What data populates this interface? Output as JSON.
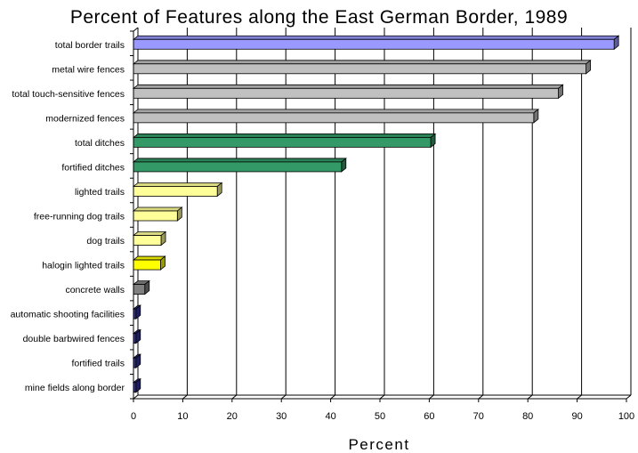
{
  "chart_data": {
    "type": "bar",
    "orientation": "horizontal",
    "title": "Percent of Features along the East German Border, 1989",
    "xlabel": "Percent",
    "ylabel": "",
    "xlim": [
      0,
      100
    ],
    "xticks": [
      0,
      10,
      20,
      30,
      40,
      50,
      60,
      70,
      80,
      90,
      100
    ],
    "grid": "vertical",
    "legend": "none",
    "style": "3d",
    "categories": [
      "total border trails",
      "metal wire fences",
      "total touch-sensitive fences",
      "modernized fences",
      "total ditches",
      "fortified ditches",
      "lighted trails",
      "free-running dog trails",
      "dog trails",
      "halogin lighted trails",
      "concrete walls",
      "automatic shooting facilities",
      "double barbwired fences",
      "fortified trails",
      "mine fields along border"
    ],
    "values": [
      97.5,
      91.8,
      86.2,
      81.2,
      60.3,
      42.2,
      17.0,
      8.9,
      5.6,
      5.5,
      2.3,
      0.5,
      0.5,
      0.5,
      0.5
    ],
    "colors": [
      "#9999ff",
      "#c0c0c0",
      "#c0c0c0",
      "#c0c0c0",
      "#339966",
      "#339966",
      "#ffff99",
      "#ffff99",
      "#ffff99",
      "#ffff00",
      "#808080",
      "#333399",
      "#333399",
      "#333399",
      "#333399"
    ]
  }
}
